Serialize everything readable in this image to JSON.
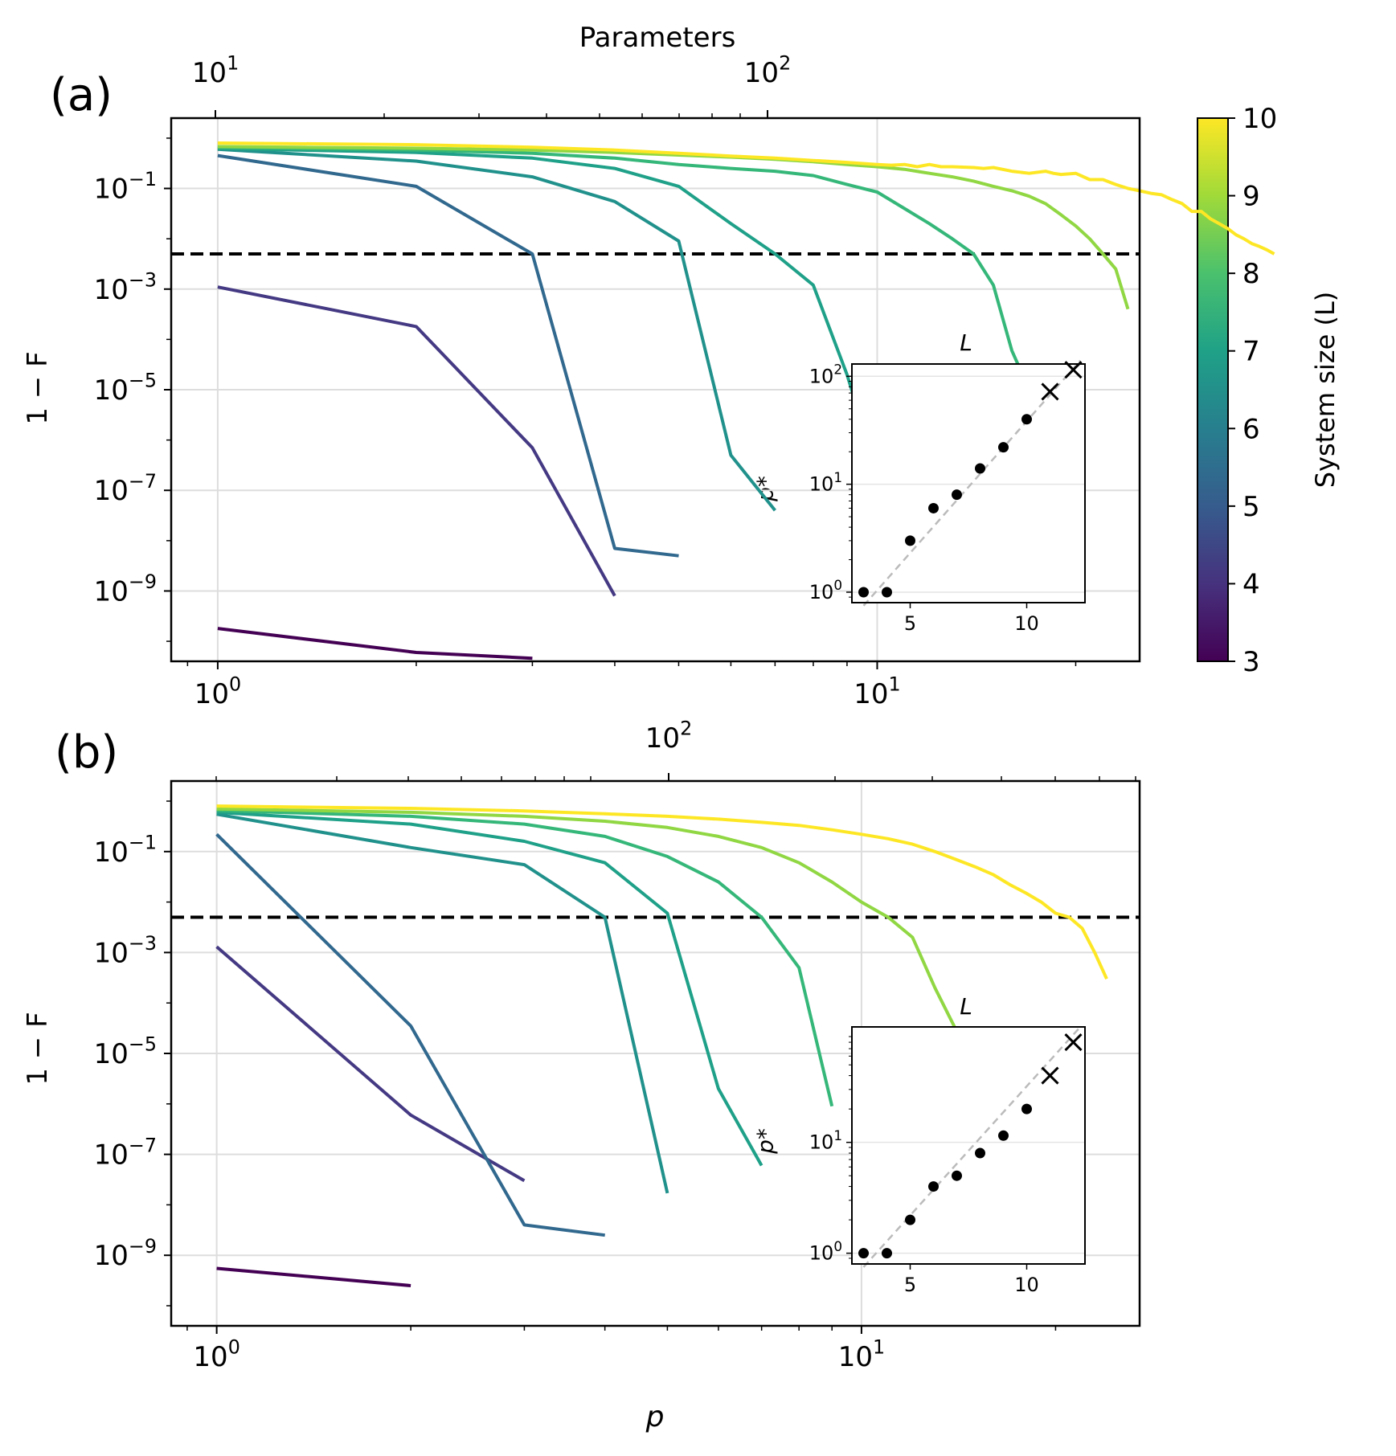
{
  "figure": {
    "colorbar": {
      "label": "System size (L)",
      "min": 3,
      "max": 10,
      "ticks": [
        3,
        4,
        5,
        6,
        7,
        8,
        9,
        10
      ],
      "colormap": "viridis"
    },
    "threshold_color": "#000000"
  },
  "chart_data": [
    {
      "panel_label": "(a)",
      "type": "line",
      "x_scale": "log",
      "y_scale": "log",
      "xlabel": "",
      "ylabel": "1 − F",
      "xlim": [
        0.85,
        25
      ],
      "ylim": [
        4e-11,
        2.5
      ],
      "x_ticks": [
        "10^0",
        "10^1"
      ],
      "y_ticks": [
        "10^-1",
        "10^-3",
        "10^-5",
        "10^-7",
        "10^-9"
      ],
      "top_axis": {
        "label": "Parameters",
        "ticks": [
          "10^1",
          "10^2"
        ]
      },
      "grid": true,
      "threshold": 0.005,
      "series": [
        {
          "L": 3,
          "color": "#440154",
          "x": [
            1,
            2,
            3
          ],
          "y": [
            1.8e-10,
            6e-11,
            4.6e-11
          ]
        },
        {
          "L": 4,
          "color": "#443983",
          "x": [
            1,
            2,
            3,
            4
          ],
          "y": [
            0.0011,
            0.00018,
            7e-07,
            8e-10
          ]
        },
        {
          "L": 5,
          "color": "#31688e",
          "x": [
            1,
            2,
            3,
            4,
            5
          ],
          "y": [
            0.45,
            0.11,
            0.005,
            7e-09,
            5e-09
          ]
        },
        {
          "L": 6,
          "color": "#21918c",
          "x": [
            1,
            2,
            3,
            4,
            5,
            6,
            7
          ],
          "y": [
            0.6,
            0.35,
            0.17,
            0.055,
            0.009,
            5e-07,
            4e-08
          ]
        },
        {
          "L": 7,
          "color": "#1fa088",
          "x": [
            1,
            2,
            3,
            4,
            5,
            6,
            7,
            8,
            9,
            10
          ],
          "y": [
            0.62,
            0.52,
            0.4,
            0.25,
            0.11,
            0.02,
            0.005,
            0.0012,
            2e-05,
            2.2e-07
          ]
        },
        {
          "L": 8,
          "color": "#35b779",
          "x": [
            1,
            2,
            3,
            4,
            5,
            6,
            7,
            8,
            9,
            10,
            11,
            12,
            13,
            14,
            15,
            16,
            17
          ],
          "y": [
            0.65,
            0.58,
            0.5,
            0.4,
            0.3,
            0.25,
            0.22,
            0.18,
            0.12,
            0.085,
            0.04,
            0.02,
            0.01,
            0.005,
            0.0012,
            6e-05,
            1e-05
          ]
        },
        {
          "L": 9,
          "color": "#90d743",
          "x": [
            1,
            2,
            3,
            4,
            5,
            6,
            7,
            8,
            9,
            10,
            11,
            12,
            13,
            14,
            15,
            16,
            17,
            18,
            19,
            20,
            21,
            22,
            23,
            24
          ],
          "y": [
            0.68,
            0.63,
            0.58,
            0.52,
            0.46,
            0.42,
            0.38,
            0.34,
            0.3,
            0.27,
            0.24,
            0.2,
            0.17,
            0.14,
            0.11,
            0.09,
            0.07,
            0.05,
            0.03,
            0.018,
            0.01,
            0.005,
            0.0025,
            0.0004
          ]
        },
        {
          "L": 10,
          "color": "#fde725",
          "x": [
            1,
            2,
            3,
            4,
            5,
            6,
            7,
            8,
            9,
            10,
            10.5,
            11,
            11.5,
            12,
            12.5,
            13,
            14,
            14.5,
            15,
            16,
            17,
            18,
            18.5,
            19,
            20,
            21,
            22,
            23,
            24,
            25,
            26,
            27,
            28,
            29,
            30,
            31,
            32,
            33,
            34,
            35,
            36,
            37,
            38,
            39,
            40
          ],
          "y": [
            0.8,
            0.74,
            0.66,
            0.58,
            0.5,
            0.44,
            0.4,
            0.36,
            0.33,
            0.3,
            0.29,
            0.3,
            0.27,
            0.3,
            0.27,
            0.27,
            0.26,
            0.25,
            0.26,
            0.22,
            0.2,
            0.22,
            0.2,
            0.19,
            0.2,
            0.15,
            0.15,
            0.12,
            0.1,
            0.09,
            0.08,
            0.075,
            0.06,
            0.05,
            0.035,
            0.035,
            0.025,
            0.02,
            0.016,
            0.012,
            0.01,
            0.008,
            0.007,
            0.006,
            0.005
          ]
        }
      ],
      "inset": {
        "type": "scatter",
        "x_scale": "linear",
        "y_scale": "log",
        "xlabel": "L",
        "ylabel": "p*",
        "xlim": [
          2.5,
          12.5
        ],
        "ylim": [
          0.8,
          130
        ],
        "x_ticks": [
          5,
          10
        ],
        "y_ticks": [
          "10^0",
          "10^1",
          "10^2"
        ],
        "points": {
          "x": [
            3,
            4,
            5,
            6,
            7,
            8,
            9,
            10
          ],
          "y": [
            1,
            1,
            3,
            6,
            8,
            14,
            22,
            40
          ]
        },
        "extrapolated": {
          "marker": "x",
          "x": [
            11,
            12
          ],
          "y": [
            72,
            115
          ]
        },
        "fit_line": {
          "style": "dashed",
          "color": "#bbbbbb",
          "x": [
            3,
            12.3
          ],
          "y": [
            0.75,
            140
          ]
        }
      }
    },
    {
      "panel_label": "(b)",
      "type": "line",
      "x_scale": "log",
      "y_scale": "log",
      "xlabel": "p",
      "ylabel": "1 − F",
      "xlim": [
        0.85,
        27
      ],
      "ylim": [
        4e-11,
        2.5
      ],
      "x_ticks": [
        "10^0",
        "10^1"
      ],
      "y_ticks": [
        "10^-1",
        "10^-3",
        "10^-5",
        "10^-7",
        "10^-9"
      ],
      "top_axis": {
        "label": "",
        "ticks": [
          "10^2"
        ]
      },
      "grid": true,
      "threshold": 0.005,
      "series": [
        {
          "L": 3,
          "color": "#440154",
          "x": [
            1,
            2
          ],
          "y": [
            5.5e-10,
            2.5e-10
          ]
        },
        {
          "L": 4,
          "color": "#443983",
          "x": [
            1,
            2,
            3
          ],
          "y": [
            0.0013,
            6e-07,
            3e-08
          ]
        },
        {
          "L": 5,
          "color": "#31688e",
          "x": [
            1,
            2,
            3,
            4
          ],
          "y": [
            0.22,
            3.5e-05,
            4e-09,
            2.5e-09
          ]
        },
        {
          "L": 6,
          "color": "#21918c",
          "x": [
            1,
            2,
            3,
            4,
            5
          ],
          "y": [
            0.55,
            0.12,
            0.055,
            0.005,
            1.7e-08
          ]
        },
        {
          "L": 7,
          "color": "#1fa088",
          "x": [
            1,
            2,
            3,
            4,
            5,
            6,
            7
          ],
          "y": [
            0.6,
            0.35,
            0.16,
            0.06,
            0.006,
            2e-06,
            6e-08
          ]
        },
        {
          "L": 8,
          "color": "#35b779",
          "x": [
            1,
            2,
            3,
            4,
            5,
            6,
            7,
            8,
            9
          ],
          "y": [
            0.65,
            0.5,
            0.35,
            0.2,
            0.08,
            0.025,
            0.005,
            0.0005,
            9e-07
          ]
        },
        {
          "L": 9,
          "color": "#90d743",
          "x": [
            1,
            2,
            3,
            4,
            5,
            6,
            7,
            8,
            9,
            10,
            11,
            12,
            13,
            14
          ],
          "y": [
            0.7,
            0.6,
            0.5,
            0.4,
            0.3,
            0.2,
            0.12,
            0.06,
            0.025,
            0.01,
            0.005,
            0.002,
            0.0002,
            3e-05
          ]
        },
        {
          "L": 10,
          "color": "#fde725",
          "x": [
            1,
            2,
            3,
            4,
            5,
            6,
            7,
            8,
            9,
            10,
            11,
            12,
            13,
            14,
            15,
            16,
            17,
            18,
            19,
            20,
            21,
            22,
            23,
            24
          ],
          "y": [
            0.8,
            0.72,
            0.64,
            0.56,
            0.5,
            0.44,
            0.38,
            0.33,
            0.27,
            0.22,
            0.18,
            0.14,
            0.1,
            0.07,
            0.05,
            0.035,
            0.022,
            0.015,
            0.01,
            0.006,
            0.005,
            0.003,
            0.001,
            0.0003
          ]
        }
      ],
      "inset": {
        "type": "scatter",
        "x_scale": "linear",
        "y_scale": "log",
        "xlabel": "L",
        "ylabel": "p*",
        "xlim": [
          2.5,
          12.5
        ],
        "ylim": [
          0.8,
          110
        ],
        "x_ticks": [
          5,
          10
        ],
        "y_ticks": [
          "10^0",
          "10^1"
        ],
        "points": {
          "x": [
            3,
            4,
            5,
            6,
            7,
            8,
            9,
            10
          ],
          "y": [
            1,
            1,
            2,
            4,
            5,
            8,
            11.5,
            20
          ]
        },
        "extrapolated": {
          "marker": "x",
          "x": [
            11,
            12
          ],
          "y": [
            40,
            80
          ]
        },
        "fit_line": {
          "style": "dashed",
          "color": "#bbbbbb",
          "x": [
            3,
            12.3
          ],
          "y": [
            0.75,
            110
          ]
        }
      }
    }
  ]
}
